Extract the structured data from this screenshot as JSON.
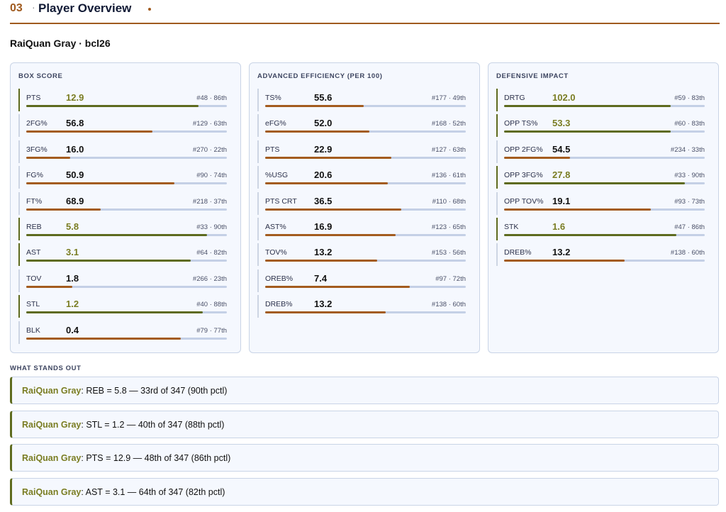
{
  "header": {
    "number": "03",
    "separator": "·",
    "title": "Player Overview"
  },
  "player": {
    "name": "RaiQuan Gray · bcl26"
  },
  "panels": [
    {
      "title": "BOX SCORE",
      "rows": [
        {
          "label": "PTS",
          "value": "12.9",
          "rank": "#48 · 86th",
          "pct": 86,
          "highlight": true
        },
        {
          "label": "2FG%",
          "value": "56.8",
          "rank": "#129 · 63th",
          "pct": 63,
          "highlight": false
        },
        {
          "label": "3FG%",
          "value": "16.0",
          "rank": "#270 · 22th",
          "pct": 22,
          "highlight": false
        },
        {
          "label": "FG%",
          "value": "50.9",
          "rank": "#90 · 74th",
          "pct": 74,
          "highlight": false
        },
        {
          "label": "FT%",
          "value": "68.9",
          "rank": "#218 · 37th",
          "pct": 37,
          "highlight": false
        },
        {
          "label": "REB",
          "value": "5.8",
          "rank": "#33 · 90th",
          "pct": 90,
          "highlight": true
        },
        {
          "label": "AST",
          "value": "3.1",
          "rank": "#64 · 82th",
          "pct": 82,
          "highlight": true
        },
        {
          "label": "TOV",
          "value": "1.8",
          "rank": "#266 · 23th",
          "pct": 23,
          "highlight": false
        },
        {
          "label": "STL",
          "value": "1.2",
          "rank": "#40 · 88th",
          "pct": 88,
          "highlight": true
        },
        {
          "label": "BLK",
          "value": "0.4",
          "rank": "#79 · 77th",
          "pct": 77,
          "highlight": false
        }
      ]
    },
    {
      "title": "ADVANCED EFFICIENCY (PER 100)",
      "rows": [
        {
          "label": "TS%",
          "value": "55.6",
          "rank": "#177 · 49th",
          "pct": 49,
          "highlight": false
        },
        {
          "label": "eFG%",
          "value": "52.0",
          "rank": "#168 · 52th",
          "pct": 52,
          "highlight": false
        },
        {
          "label": "PTS",
          "value": "22.9",
          "rank": "#127 · 63th",
          "pct": 63,
          "highlight": false
        },
        {
          "label": "%USG",
          "value": "20.6",
          "rank": "#136 · 61th",
          "pct": 61,
          "highlight": false
        },
        {
          "label": "PTS CRT",
          "value": "36.5",
          "rank": "#110 · 68th",
          "pct": 68,
          "highlight": false
        },
        {
          "label": "AST%",
          "value": "16.9",
          "rank": "#123 · 65th",
          "pct": 65,
          "highlight": false
        },
        {
          "label": "TOV%",
          "value": "13.2",
          "rank": "#153 · 56th",
          "pct": 56,
          "highlight": false
        },
        {
          "label": "OREB%",
          "value": "7.4",
          "rank": "#97 · 72th",
          "pct": 72,
          "highlight": false
        },
        {
          "label": "DREB%",
          "value": "13.2",
          "rank": "#138 · 60th",
          "pct": 60,
          "highlight": false
        }
      ]
    },
    {
      "title": "DEFENSIVE IMPACT",
      "rows": [
        {
          "label": "DRTG",
          "value": "102.0",
          "rank": "#59 · 83th",
          "pct": 83,
          "highlight": true
        },
        {
          "label": "OPP TS%",
          "value": "53.3",
          "rank": "#60 · 83th",
          "pct": 83,
          "highlight": true
        },
        {
          "label": "OPP 2FG%",
          "value": "54.5",
          "rank": "#234 · 33th",
          "pct": 33,
          "highlight": false
        },
        {
          "label": "OPP 3FG%",
          "value": "27.8",
          "rank": "#33 · 90th",
          "pct": 90,
          "highlight": true
        },
        {
          "label": "OPP TOV%",
          "value": "19.1",
          "rank": "#93 · 73th",
          "pct": 73,
          "highlight": false
        },
        {
          "label": "STK",
          "value": "1.6",
          "rank": "#47 · 86th",
          "pct": 86,
          "highlight": true
        },
        {
          "label": "DREB%",
          "value": "13.2",
          "rank": "#138 · 60th",
          "pct": 60,
          "highlight": false
        }
      ]
    }
  ],
  "stands_out": {
    "title": "WHAT STANDS OUT",
    "items": [
      {
        "who": "RaiQuan Gray",
        "text": ": REB = 5.8 — 33rd of 347 (90th pctl)"
      },
      {
        "who": "RaiQuan Gray",
        "text": ": STL = 1.2 — 40th of 347 (88th pctl)"
      },
      {
        "who": "RaiQuan Gray",
        "text": ": PTS = 12.9 — 48th of 347 (86th pctl)"
      },
      {
        "who": "RaiQuan Gray",
        "text": ": AST = 3.1 — 64th of 347 (82th pctl)"
      }
    ]
  },
  "colors": {
    "accent": "#a05a1e",
    "highlight": "#5e6b1f",
    "highlight_text": "#7a7d22",
    "bar_default": "#a35c1f",
    "track": "#c4d0e6"
  }
}
